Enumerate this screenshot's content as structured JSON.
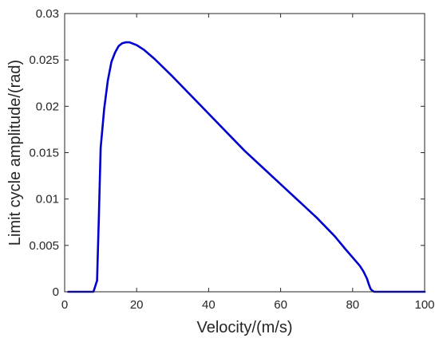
{
  "chart_data": {
    "type": "line",
    "title": "",
    "xlabel": "Velocity/(m/s)",
    "ylabel": "Limit cycle amplitude/(rad)",
    "xlim": [
      0,
      100
    ],
    "ylim": [
      0,
      0.03
    ],
    "xticks": [
      0,
      20,
      40,
      60,
      80,
      100
    ],
    "xtick_labels": [
      "0",
      "20",
      "40",
      "60",
      "80",
      "100"
    ],
    "yticks": [
      0,
      0.005,
      0.01,
      0.015,
      0.02,
      0.025,
      0.03
    ],
    "ytick_labels": [
      "0",
      "0.005",
      "0.01",
      "0.015",
      "0.02",
      "0.025",
      "0.03"
    ],
    "grid": false,
    "legend": "none",
    "series": [
      {
        "color": "#0000cc",
        "x": [
          1,
          8,
          9,
          9.5,
          10,
          11,
          12,
          13,
          14,
          15,
          16,
          17,
          18,
          20,
          22,
          25,
          30,
          35,
          40,
          45,
          50,
          55,
          60,
          65,
          70,
          75,
          78,
          80,
          82,
          83,
          84,
          84.5,
          85,
          85.5,
          86,
          87,
          100
        ],
        "y": [
          0,
          0,
          0.0012,
          0.008,
          0.0155,
          0.0198,
          0.0228,
          0.0248,
          0.0258,
          0.0265,
          0.0268,
          0.0269,
          0.0269,
          0.0266,
          0.0261,
          0.0251,
          0.0232,
          0.0212,
          0.0192,
          0.0172,
          0.0152,
          0.0134,
          0.0116,
          0.0098,
          0.008,
          0.006,
          0.0046,
          0.0037,
          0.0028,
          0.0022,
          0.0014,
          0.0008,
          0.0003,
          0.0001,
          0,
          0,
          0
        ]
      }
    ]
  }
}
